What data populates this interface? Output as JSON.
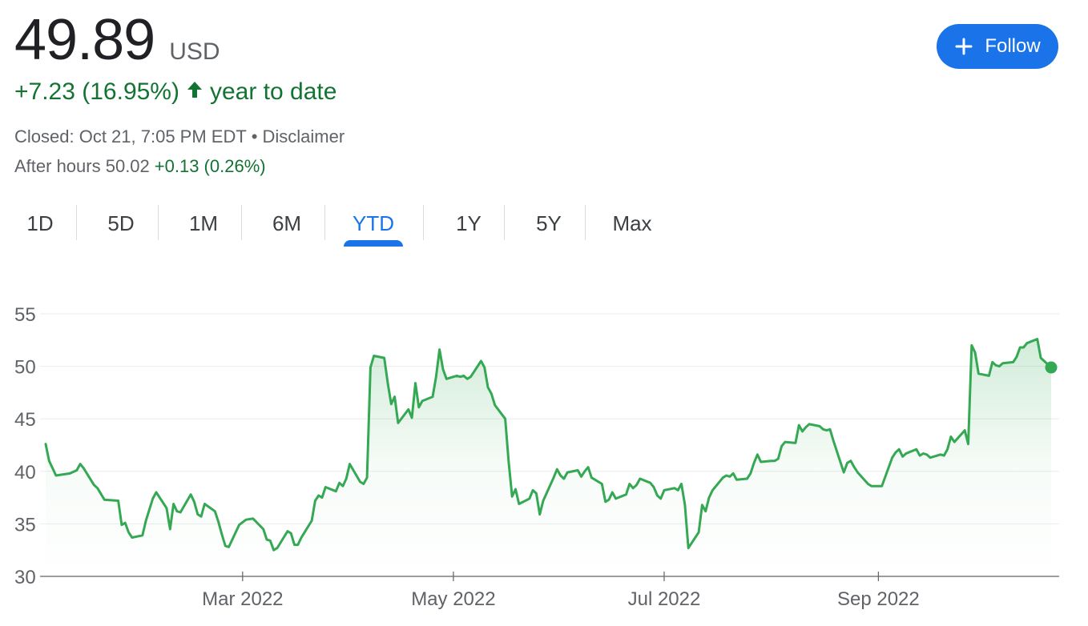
{
  "quote": {
    "price": "49.89",
    "currency": "USD",
    "change": "+7.23 (16.95%)",
    "change_arrow_icon": "arrow-up-icon",
    "change_period": "year to date",
    "closed_text": "Closed: Oct 21, 7:05 PM EDT",
    "separator": "•",
    "disclaimer": "Disclaimer",
    "after_hours_label": "After hours 50.02",
    "after_hours_change": "+0.13 (0.26%)"
  },
  "follow_button": {
    "label": "Follow",
    "icon": "plus-icon",
    "color": "#1a73e8"
  },
  "tabs": [
    {
      "label": "1D"
    },
    {
      "label": "5D"
    },
    {
      "label": "1M"
    },
    {
      "label": "6M"
    },
    {
      "label": "YTD",
      "active": true
    },
    {
      "label": "1Y"
    },
    {
      "label": "5Y"
    },
    {
      "label": "Max"
    }
  ],
  "colors": {
    "positive": "#137333",
    "line": "#34a853",
    "accent": "#1a73e8"
  },
  "chart_data": {
    "type": "line",
    "ylim": [
      30,
      55
    ],
    "y_ticks": [
      30,
      35,
      40,
      45,
      50,
      55
    ],
    "xlim": [
      "2022-01-03",
      "2022-10-21"
    ],
    "x_ticks": [
      {
        "label": "Mar 2022",
        "date": "2022-03-01"
      },
      {
        "label": "May 2022",
        "date": "2022-05-01"
      },
      {
        "label": "Jul 2022",
        "date": "2022-07-01"
      },
      {
        "label": "Sep 2022",
        "date": "2022-09-01"
      }
    ],
    "grid": "horizontal",
    "series": [
      {
        "color": "#34a853",
        "points": [
          [
            "2022-01-03",
            42.6
          ],
          [
            "2022-01-04",
            41.0
          ],
          [
            "2022-01-06",
            39.6
          ],
          [
            "2022-01-10",
            39.8
          ],
          [
            "2022-01-12",
            40.1
          ],
          [
            "2022-01-13",
            40.7
          ],
          [
            "2022-01-14",
            40.3
          ],
          [
            "2022-01-17",
            38.7
          ],
          [
            "2022-01-18",
            38.4
          ],
          [
            "2022-01-20",
            37.3
          ],
          [
            "2022-01-24",
            37.2
          ],
          [
            "2022-01-25",
            34.9
          ],
          [
            "2022-01-26",
            35.1
          ],
          [
            "2022-01-27",
            34.2
          ],
          [
            "2022-01-28",
            33.7
          ],
          [
            "2022-01-31",
            33.9
          ],
          [
            "2022-02-01",
            35.3
          ],
          [
            "2022-02-03",
            37.4
          ],
          [
            "2022-02-04",
            38.0
          ],
          [
            "2022-02-07",
            36.5
          ],
          [
            "2022-02-08",
            34.5
          ],
          [
            "2022-02-09",
            36.9
          ],
          [
            "2022-02-10",
            36.2
          ],
          [
            "2022-02-11",
            36.1
          ],
          [
            "2022-02-14",
            37.8
          ],
          [
            "2022-02-15",
            37.1
          ],
          [
            "2022-02-16",
            35.9
          ],
          [
            "2022-02-17",
            35.7
          ],
          [
            "2022-02-18",
            36.9
          ],
          [
            "2022-02-21",
            36.2
          ],
          [
            "2022-02-22",
            35.2
          ],
          [
            "2022-02-23",
            34.0
          ],
          [
            "2022-02-24",
            32.9
          ],
          [
            "2022-02-25",
            32.8
          ],
          [
            "2022-02-28",
            34.9
          ],
          [
            "2022-03-02",
            35.4
          ],
          [
            "2022-03-04",
            35.5
          ],
          [
            "2022-03-07",
            34.5
          ],
          [
            "2022-03-08",
            33.5
          ],
          [
            "2022-03-09",
            33.4
          ],
          [
            "2022-03-10",
            32.5
          ],
          [
            "2022-03-11",
            32.7
          ],
          [
            "2022-03-14",
            34.3
          ],
          [
            "2022-03-15",
            34.1
          ],
          [
            "2022-03-16",
            33.0
          ],
          [
            "2022-03-17",
            33.0
          ],
          [
            "2022-03-18",
            33.7
          ],
          [
            "2022-03-21",
            35.3
          ],
          [
            "2022-03-22",
            37.2
          ],
          [
            "2022-03-23",
            37.7
          ],
          [
            "2022-03-24",
            37.5
          ],
          [
            "2022-03-25",
            38.5
          ],
          [
            "2022-03-28",
            38.1
          ],
          [
            "2022-03-29",
            38.9
          ],
          [
            "2022-03-30",
            38.6
          ],
          [
            "2022-03-31",
            39.3
          ],
          [
            "2022-04-01",
            40.7
          ],
          [
            "2022-04-04",
            39.0
          ],
          [
            "2022-04-05",
            38.8
          ],
          [
            "2022-04-06",
            39.4
          ],
          [
            "2022-04-07",
            49.9
          ],
          [
            "2022-04-08",
            51.0
          ],
          [
            "2022-04-11",
            50.8
          ],
          [
            "2022-04-12",
            48.4
          ],
          [
            "2022-04-13",
            46.4
          ],
          [
            "2022-04-14",
            47.1
          ],
          [
            "2022-04-15",
            44.6
          ],
          [
            "2022-04-18",
            45.9
          ],
          [
            "2022-04-19",
            45.1
          ],
          [
            "2022-04-20",
            48.4
          ],
          [
            "2022-04-21",
            46.1
          ],
          [
            "2022-04-22",
            46.7
          ],
          [
            "2022-04-25",
            47.1
          ],
          [
            "2022-04-26",
            49.0
          ],
          [
            "2022-04-27",
            51.6
          ],
          [
            "2022-04-28",
            49.7
          ],
          [
            "2022-04-29",
            48.8
          ],
          [
            "2022-05-02",
            49.1
          ],
          [
            "2022-05-03",
            49.0
          ],
          [
            "2022-05-04",
            49.1
          ],
          [
            "2022-05-05",
            48.8
          ],
          [
            "2022-05-06",
            49.0
          ],
          [
            "2022-05-09",
            50.5
          ],
          [
            "2022-05-10",
            49.9
          ],
          [
            "2022-05-11",
            48.0
          ],
          [
            "2022-05-12",
            47.4
          ],
          [
            "2022-05-13",
            46.3
          ],
          [
            "2022-05-16",
            45.0
          ],
          [
            "2022-05-17",
            40.9
          ],
          [
            "2022-05-18",
            37.6
          ],
          [
            "2022-05-19",
            38.3
          ],
          [
            "2022-05-20",
            36.9
          ],
          [
            "2022-05-23",
            37.4
          ],
          [
            "2022-05-24",
            38.2
          ],
          [
            "2022-05-25",
            37.9
          ],
          [
            "2022-05-26",
            35.9
          ],
          [
            "2022-05-27",
            37.2
          ],
          [
            "2022-05-30",
            39.4
          ],
          [
            "2022-05-31",
            40.2
          ],
          [
            "2022-06-01",
            39.6
          ],
          [
            "2022-06-02",
            39.3
          ],
          [
            "2022-06-03",
            39.9
          ],
          [
            "2022-06-06",
            40.1
          ],
          [
            "2022-06-07",
            39.5
          ],
          [
            "2022-06-08",
            40.0
          ],
          [
            "2022-06-09",
            40.4
          ],
          [
            "2022-06-10",
            39.4
          ],
          [
            "2022-06-13",
            38.8
          ],
          [
            "2022-06-14",
            37.1
          ],
          [
            "2022-06-15",
            37.3
          ],
          [
            "2022-06-16",
            38.0
          ],
          [
            "2022-06-17",
            37.4
          ],
          [
            "2022-06-20",
            37.8
          ],
          [
            "2022-06-21",
            38.8
          ],
          [
            "2022-06-22",
            38.4
          ],
          [
            "2022-06-23",
            38.7
          ],
          [
            "2022-06-24",
            39.3
          ],
          [
            "2022-06-27",
            38.9
          ],
          [
            "2022-06-28",
            38.5
          ],
          [
            "2022-06-29",
            37.7
          ],
          [
            "2022-06-30",
            37.4
          ],
          [
            "2022-07-01",
            38.2
          ],
          [
            "2022-07-04",
            38.4
          ],
          [
            "2022-07-05",
            38.2
          ],
          [
            "2022-07-06",
            38.8
          ],
          [
            "2022-07-07",
            36.8
          ],
          [
            "2022-07-08",
            32.7
          ],
          [
            "2022-07-11",
            34.2
          ],
          [
            "2022-07-12",
            36.8
          ],
          [
            "2022-07-13",
            36.2
          ],
          [
            "2022-07-14",
            37.5
          ],
          [
            "2022-07-15",
            38.2
          ],
          [
            "2022-07-18",
            39.4
          ],
          [
            "2022-07-19",
            39.6
          ],
          [
            "2022-07-20",
            39.5
          ],
          [
            "2022-07-21",
            39.8
          ],
          [
            "2022-07-22",
            39.2
          ],
          [
            "2022-07-25",
            39.3
          ],
          [
            "2022-07-26",
            39.8
          ],
          [
            "2022-07-27",
            40.8
          ],
          [
            "2022-07-28",
            41.6
          ],
          [
            "2022-07-29",
            40.9
          ],
          [
            "2022-08-01",
            41.0
          ],
          [
            "2022-08-02",
            41.0
          ],
          [
            "2022-08-03",
            41.2
          ],
          [
            "2022-08-04",
            42.4
          ],
          [
            "2022-08-05",
            42.8
          ],
          [
            "2022-08-08",
            42.7
          ],
          [
            "2022-08-09",
            44.4
          ],
          [
            "2022-08-10",
            43.8
          ],
          [
            "2022-08-11",
            44.2
          ],
          [
            "2022-08-12",
            44.5
          ],
          [
            "2022-08-15",
            44.3
          ],
          [
            "2022-08-16",
            44.0
          ],
          [
            "2022-08-17",
            43.9
          ],
          [
            "2022-08-18",
            44.0
          ],
          [
            "2022-08-19",
            42.9
          ],
          [
            "2022-08-22",
            39.9
          ],
          [
            "2022-08-23",
            40.8
          ],
          [
            "2022-08-24",
            41.0
          ],
          [
            "2022-08-25",
            40.4
          ],
          [
            "2022-08-26",
            39.9
          ],
          [
            "2022-08-29",
            38.8
          ],
          [
            "2022-08-30",
            38.6
          ],
          [
            "2022-09-01",
            38.6
          ],
          [
            "2022-09-02",
            38.6
          ],
          [
            "2022-09-05",
            41.3
          ],
          [
            "2022-09-06",
            41.8
          ],
          [
            "2022-09-07",
            42.1
          ],
          [
            "2022-09-08",
            41.4
          ],
          [
            "2022-09-09",
            41.7
          ],
          [
            "2022-09-12",
            42.1
          ],
          [
            "2022-09-13",
            41.5
          ],
          [
            "2022-09-14",
            41.7
          ],
          [
            "2022-09-15",
            41.6
          ],
          [
            "2022-09-16",
            41.3
          ],
          [
            "2022-09-19",
            41.6
          ],
          [
            "2022-09-20",
            41.5
          ],
          [
            "2022-09-21",
            42.1
          ],
          [
            "2022-09-22",
            43.3
          ],
          [
            "2022-09-23",
            42.8
          ],
          [
            "2022-09-26",
            43.9
          ],
          [
            "2022-09-27",
            42.6
          ],
          [
            "2022-09-28",
            52.0
          ],
          [
            "2022-09-29",
            51.3
          ],
          [
            "2022-09-30",
            49.3
          ],
          [
            "2022-10-03",
            49.1
          ],
          [
            "2022-10-04",
            50.4
          ],
          [
            "2022-10-05",
            50.1
          ],
          [
            "2022-10-06",
            50.0
          ],
          [
            "2022-10-07",
            50.3
          ],
          [
            "2022-10-10",
            50.4
          ],
          [
            "2022-10-11",
            50.9
          ],
          [
            "2022-10-12",
            51.8
          ],
          [
            "2022-10-13",
            51.8
          ],
          [
            "2022-10-14",
            52.2
          ],
          [
            "2022-10-17",
            52.6
          ],
          [
            "2022-10-18",
            50.8
          ],
          [
            "2022-10-21",
            49.89
          ]
        ]
      }
    ]
  }
}
